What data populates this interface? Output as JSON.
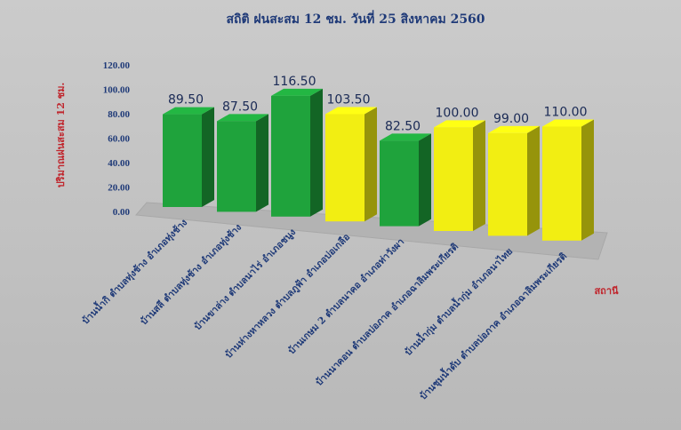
{
  "chart_data": {
    "type": "bar",
    "title": "สถิติ ฝนสะสม 12 ชม. วันที่ 25 สิงหาคม 2560",
    "ylabel": "ปริมาณฝนสะสม 12 ชม.",
    "xlabel": "สถานี",
    "ylim": [
      0,
      120
    ],
    "yticks": [
      "0.00",
      "20.00",
      "40.00",
      "60.00",
      "80.00",
      "100.00",
      "120.00"
    ],
    "categories": [
      "บ้านน้ำกิ ตำบลทุ่งช้าง อำเภอทุ่งช้าง",
      "บ้านสลี ตำบลทุ่งช้าง อำเภอทุ่งช้าง",
      "บ้านขาล่าง ตำบลนาไร่ อำเภอชนูง",
      "บ้านห่างหาหลวง ตำบลภูฟ้า อำเภอบ่อเกลือ",
      "บ้านเกษม 2 ตำบลนาคอ อำเภอท่าวังผา",
      "บ้านนาคอน ตำบลบ่อภาค อำเภอฉาลิมพระเกียรติ",
      "บ้านน้ำกุ่ม ตำบลน้ำกุ่ม อำเภอนาไทย",
      "บ้านชุมน้ำดับ ตำบลบ่อภาค อำเภอฉาลิมพระเกียรติ"
    ],
    "values": [
      89.5,
      87.5,
      116.5,
      103.5,
      82.5,
      100.0,
      99.0,
      110.0
    ],
    "value_labels": [
      "89.50",
      "87.50",
      "116.50",
      "103.50",
      "82.50",
      "100.00",
      "99.00",
      "110.00"
    ],
    "bar_colors": [
      "#1fa33c",
      "#1fa33c",
      "#1fa33c",
      "#f2ee12",
      "#1fa33c",
      "#f2ee12",
      "#f2ee12",
      "#f2ee12"
    ],
    "grid": false,
    "legend": "none"
  }
}
